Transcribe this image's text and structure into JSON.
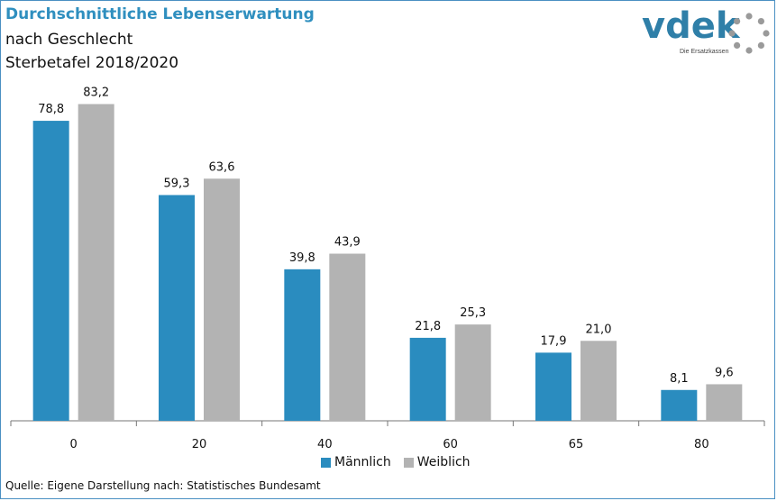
{
  "header": {
    "title": "Durchschnittliche Lebenserwartung",
    "subtitle_line1": "nach Geschlecht",
    "subtitle_line2": "Sterbetafel 2018/2020"
  },
  "logo": {
    "text": "vdek",
    "tagline": "Die Ersatzkassen",
    "color": "#2f7fa8"
  },
  "source": "Quelle: Eigene Darstellung nach: Statistisches Bundesamt",
  "chart_data": {
    "type": "bar",
    "categories": [
      "0",
      "20",
      "40",
      "60",
      "65",
      "80"
    ],
    "series": [
      {
        "name": "Männlich",
        "values": [
          78.8,
          59.3,
          39.8,
          21.8,
          17.9,
          8.1
        ],
        "labels": [
          "78,8",
          "59,3",
          "39,8",
          "21,8",
          "17,9",
          "8,1"
        ],
        "color": "#2a8cbf"
      },
      {
        "name": "Weiblich",
        "values": [
          83.2,
          63.6,
          43.9,
          25.3,
          21.0,
          9.6
        ],
        "labels": [
          "83,2",
          "63,6",
          "43,9",
          "25,3",
          "21,0",
          "9,6"
        ],
        "color": "#b3b3b3"
      }
    ],
    "ylim": [
      0,
      90
    ],
    "grid": false,
    "legend_position": "bottom"
  }
}
